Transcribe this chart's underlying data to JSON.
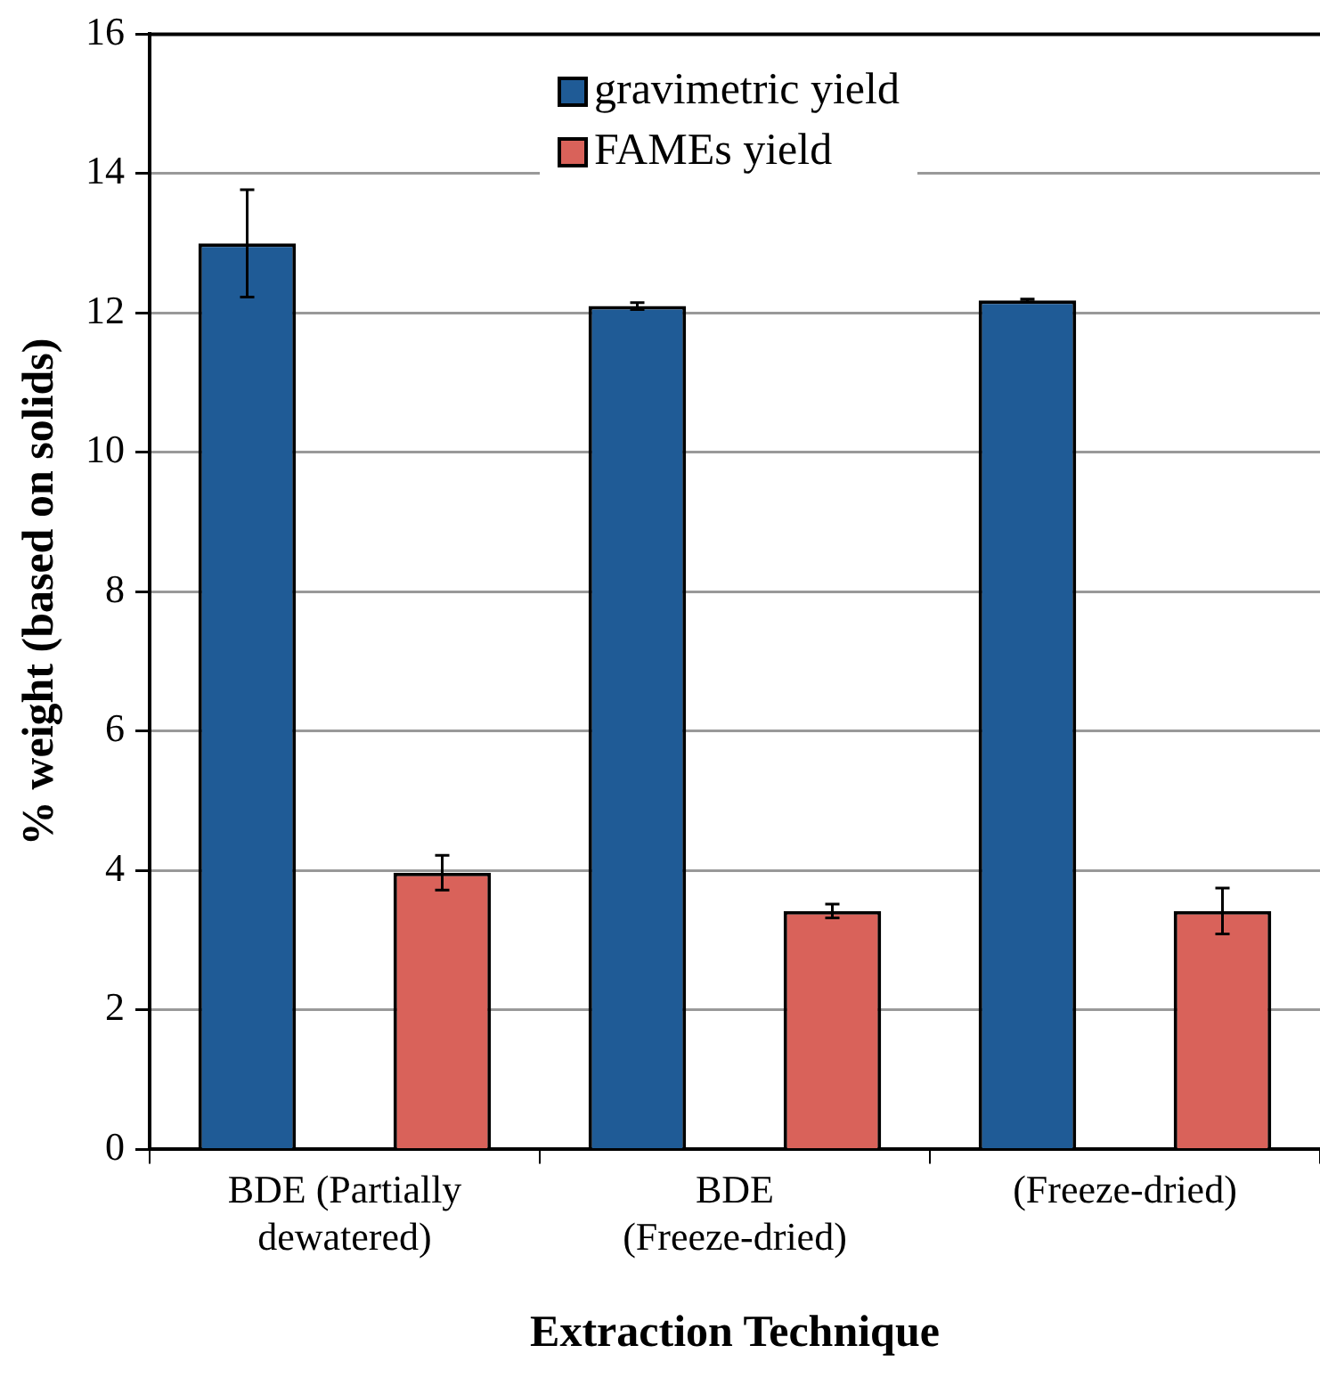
{
  "chart_data": {
    "type": "bar",
    "xlabel": "Extraction Technique",
    "ylabel": "% weight (based on solids)",
    "categories": [
      "BDE (Partially dewatered)",
      "BDE (Freeze-dried)",
      "(Freeze-dried)"
    ],
    "series": [
      {
        "name": "gravimetric yield",
        "color": "#1f5b96",
        "values": [
          13.0,
          12.1,
          12.18
        ],
        "errors": [
          0.77,
          0.05,
          0.02
        ]
      },
      {
        "name": "FAMEs yield",
        "color": "#d9625a",
        "values": [
          3.97,
          3.42,
          3.42
        ],
        "errors": [
          0.25,
          0.1,
          0.33
        ]
      }
    ],
    "ylim": [
      0,
      16
    ],
    "yticks": [
      0,
      2,
      4,
      6,
      8,
      10,
      12,
      14,
      16
    ],
    "grid": "y",
    "legend": "top"
  }
}
